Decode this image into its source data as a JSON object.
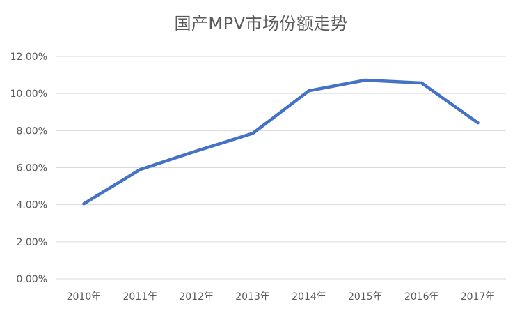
{
  "chart_data": {
    "type": "line",
    "title": "国产MPV市场份额走势",
    "xlabel": "",
    "ylabel": "",
    "categories": [
      "2010年",
      "2011年",
      "2012年",
      "2013年",
      "2014年",
      "2015年",
      "2016年",
      "2017年"
    ],
    "series": [
      {
        "values": [
          4.05,
          5.9,
          6.9,
          7.85,
          10.15,
          10.72,
          10.57,
          8.42
        ],
        "color": "#4472C4"
      }
    ],
    "y_ticks": [
      "0.00%",
      "2.00%",
      "4.00%",
      "6.00%",
      "8.00%",
      "10.00%",
      "12.00%"
    ],
    "ylim": [
      0,
      12
    ],
    "y_unit": "%",
    "grid": true,
    "legend": "none"
  },
  "colors": {
    "line": "#4472C4",
    "grid": "#D9D9D9",
    "text": "#595959"
  }
}
